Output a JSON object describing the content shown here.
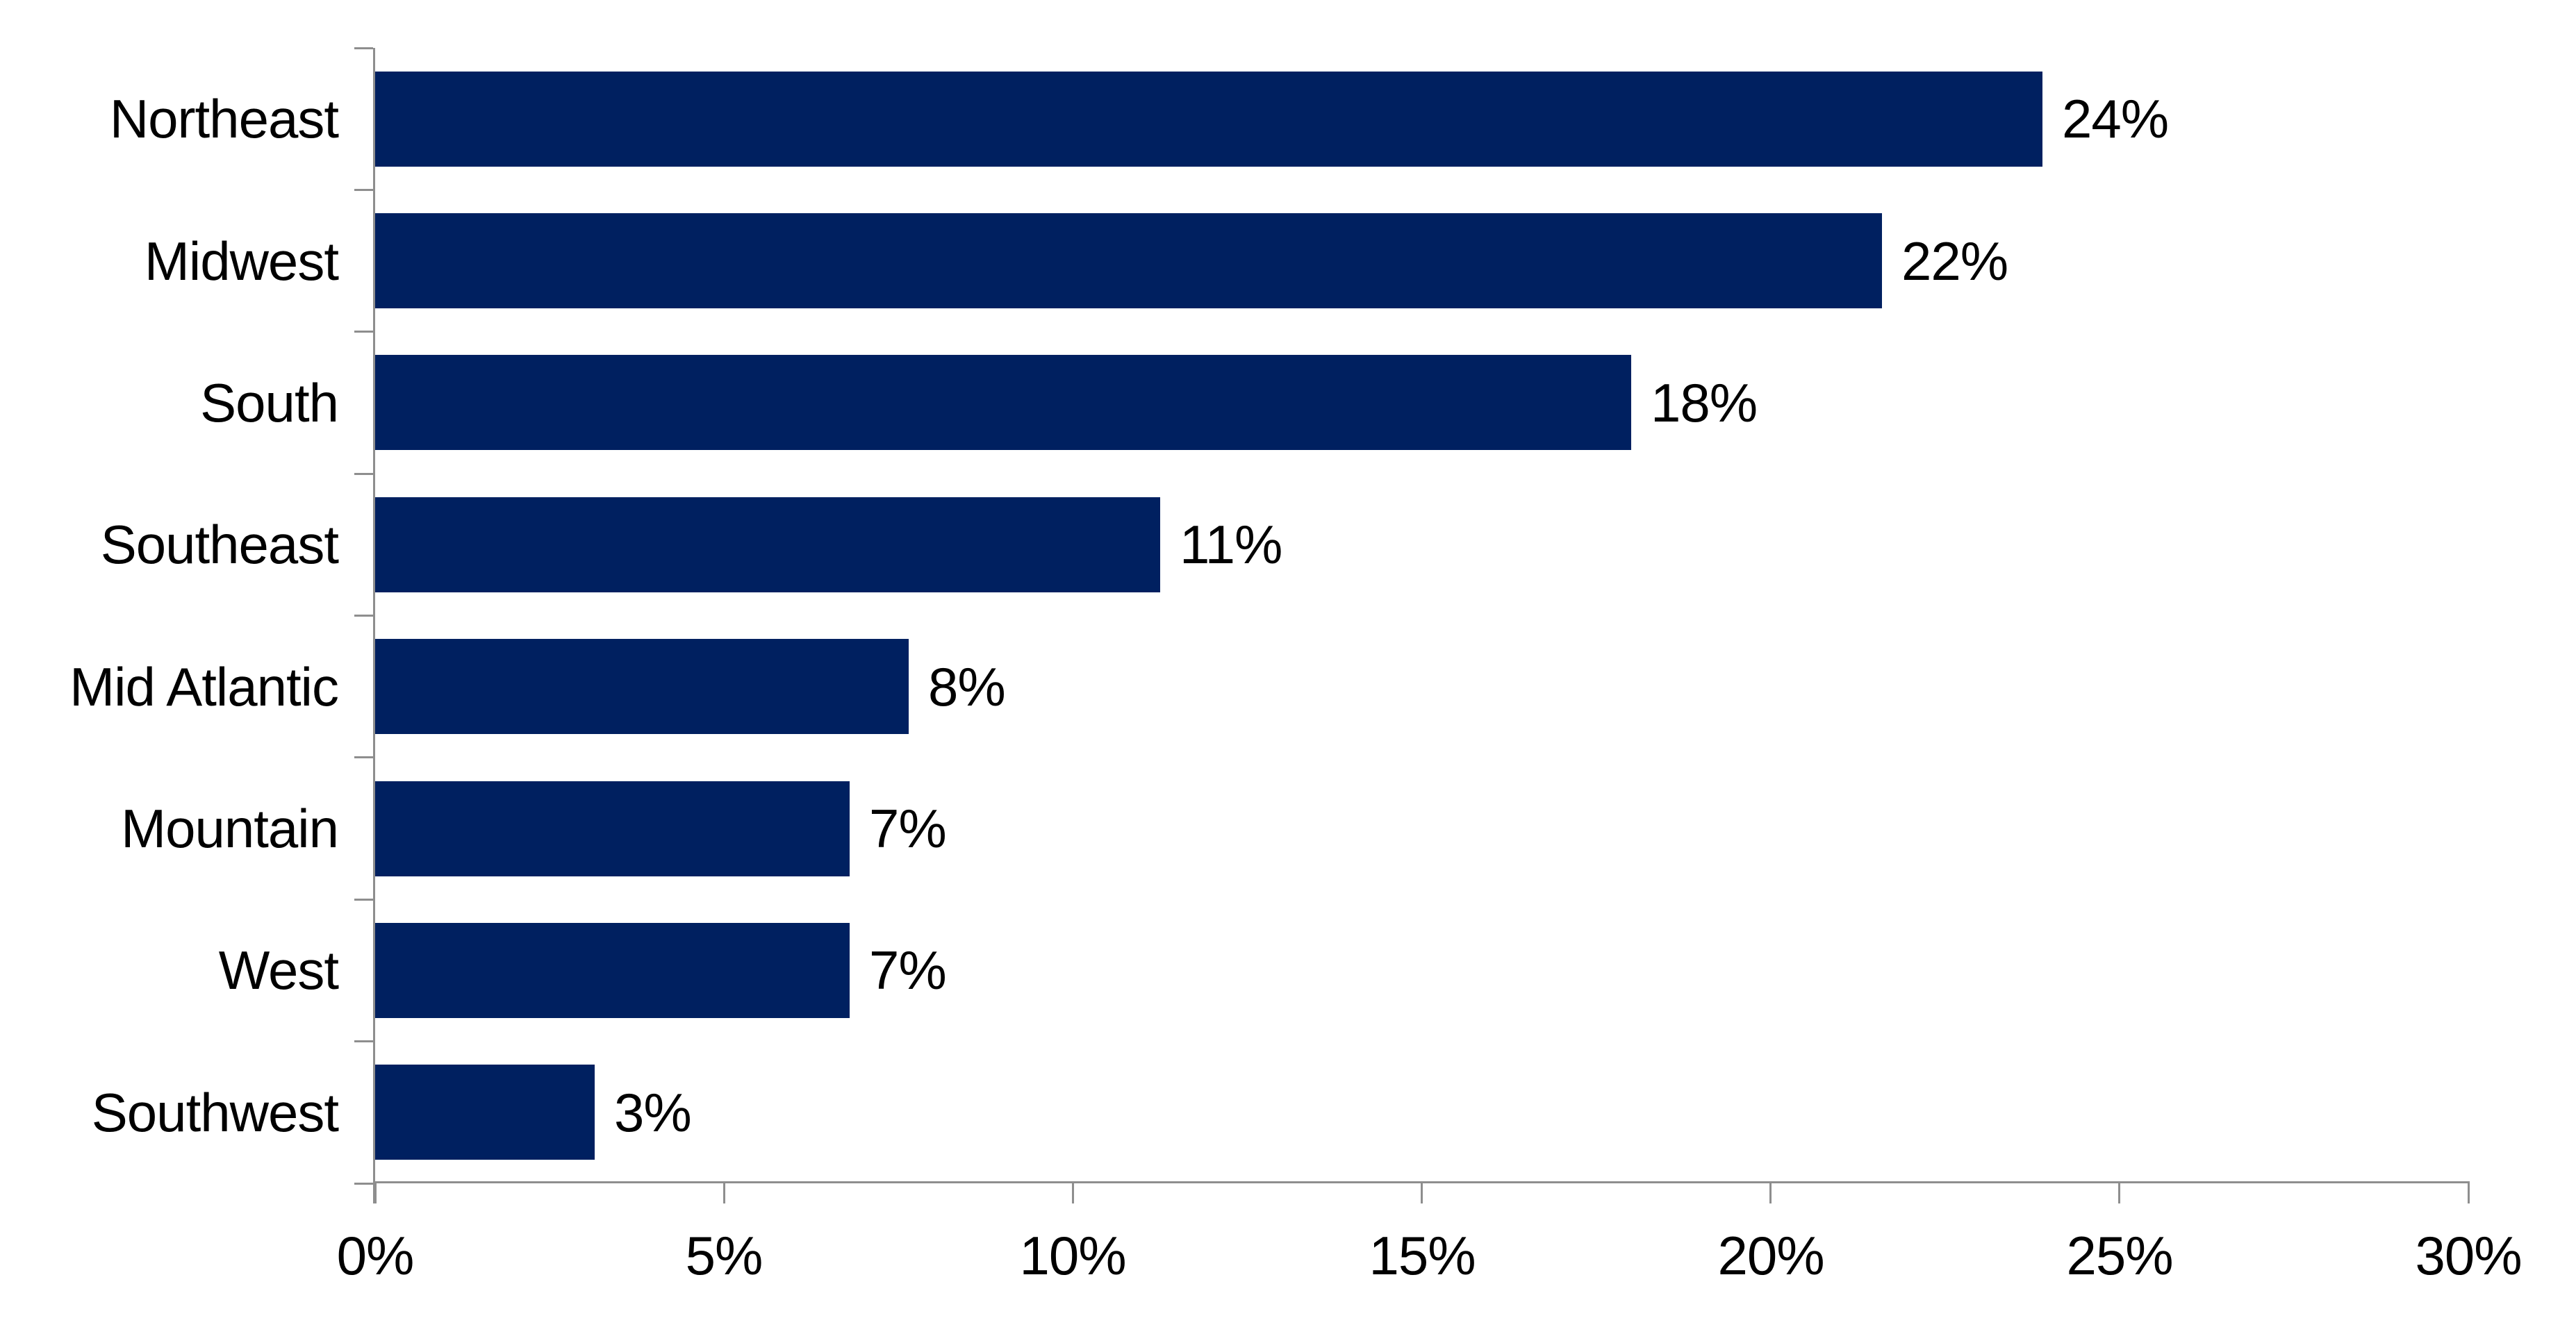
{
  "chart_data": {
    "type": "bar",
    "orientation": "horizontal",
    "title": "",
    "xlabel": "",
    "ylabel": "",
    "categories": [
      "Northeast",
      "Midwest",
      "South",
      "Southeast",
      "Mid Atlantic",
      "Mountain",
      "West",
      "Southwest"
    ],
    "values": [
      24,
      22,
      18,
      11,
      8,
      7,
      7,
      3
    ],
    "value_labels": [
      "24%",
      "22%",
      "18%",
      "11%",
      "8%",
      "7%",
      "7%",
      "3%"
    ],
    "bar_lengths_pct": [
      23.9,
      21.6,
      18.0,
      11.25,
      7.65,
      6.8,
      6.8,
      3.15
    ],
    "xlim": [
      0,
      30
    ],
    "x_tick_values": [
      0,
      5,
      10,
      15,
      20,
      25,
      30
    ],
    "x_tick_labels": [
      "0%",
      "5%",
      "10%",
      "15%",
      "20%",
      "25%",
      "30%"
    ],
    "grid": false,
    "legend": false,
    "data_labels_position": "outside-end",
    "colors": {
      "bar": "#002060",
      "axis": "#8e8e8e",
      "text": "#000000",
      "background": "#ffffff"
    }
  }
}
